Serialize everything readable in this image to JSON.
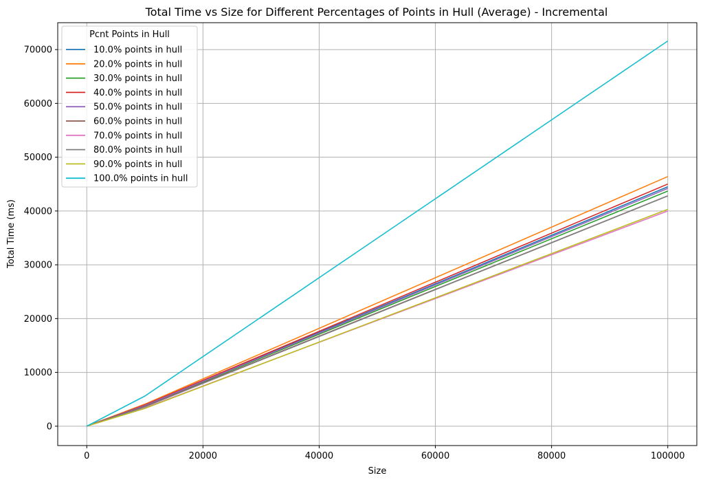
{
  "chart_data": {
    "type": "line",
    "title": "Total Time vs Size for Different Percentages of Points in Hull (Average) - Incremental",
    "xlabel": "Size",
    "ylabel": "Total Time (ms)",
    "xlim": [
      -5000,
      105000
    ],
    "ylim": [
      -3600,
      75000
    ],
    "xticks": [
      0,
      20000,
      40000,
      60000,
      80000,
      100000
    ],
    "yticks": [
      0,
      10000,
      20000,
      30000,
      40000,
      50000,
      60000,
      70000
    ],
    "grid": true,
    "legend": {
      "title": "Pcnt Points in Hull",
      "placement": "top-left"
    },
    "x": [
      0,
      10000,
      100000
    ],
    "series": [
      {
        "name": "10.0% points in hull",
        "color": "#1f77b4",
        "values": [
          0,
          3900,
          44500
        ]
      },
      {
        "name": "20.0% points in hull",
        "color": "#ff7f0e",
        "values": [
          0,
          4100,
          46400
        ]
      },
      {
        "name": "30.0% points in hull",
        "color": "#2ca02c",
        "values": [
          0,
          3800,
          43700
        ]
      },
      {
        "name": "40.0% points in hull",
        "color": "#d62728",
        "values": [
          0,
          3950,
          45000
        ]
      },
      {
        "name": "50.0% points in hull",
        "color": "#9467bd",
        "values": [
          0,
          3850,
          44200
        ]
      },
      {
        "name": "60.0% points in hull",
        "color": "#8c564b",
        "values": [
          0,
          3700,
          42800
        ]
      },
      {
        "name": "70.0% points in hull",
        "color": "#e377c2",
        "values": [
          0,
          3400,
          40000
        ]
      },
      {
        "name": "80.0% points in hull",
        "color": "#7f7f7f",
        "values": [
          0,
          3600,
          42800
        ]
      },
      {
        "name": "90.0% points in hull",
        "color": "#bcbd22",
        "values": [
          0,
          3300,
          40300
        ]
      },
      {
        "name": "100.0% points in hull",
        "color": "#17becf",
        "values": [
          0,
          5600,
          71600
        ]
      }
    ]
  }
}
